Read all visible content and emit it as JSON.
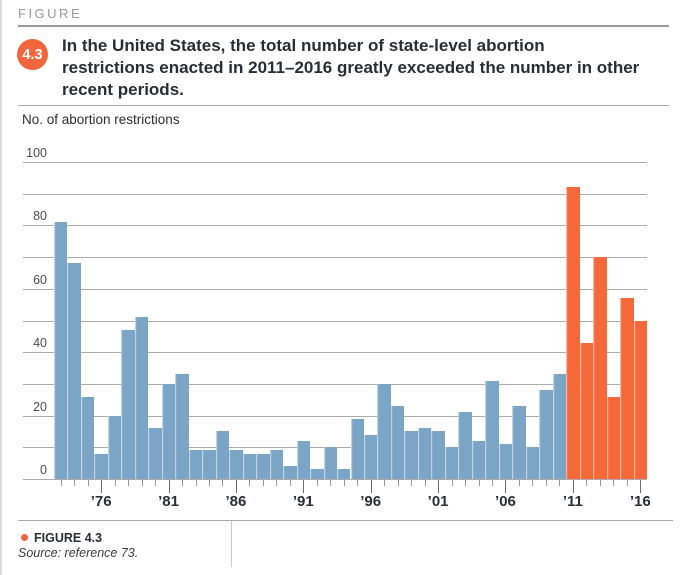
{
  "figure": {
    "kicker": "FIGURE",
    "badge": "4.3",
    "footer_label": "FIGURE 4.3",
    "source": "Source: reference 73."
  },
  "chart_data": {
    "type": "bar",
    "title": "In the United States, the total number of state-level abortion restrictions enacted in 2011–2016 greatly exceeded the number in other recent periods.",
    "ylabel": "No. of abortion restrictions",
    "xlabel": "",
    "ylim": [
      0,
      100
    ],
    "grid": true,
    "gridline_step": 10,
    "yticks": [
      0,
      20,
      40,
      60,
      80,
      100
    ],
    "categories": [
      1973,
      1974,
      1975,
      1976,
      1977,
      1978,
      1979,
      1980,
      1981,
      1982,
      1983,
      1984,
      1985,
      1986,
      1987,
      1988,
      1989,
      1990,
      1991,
      1992,
      1993,
      1994,
      1995,
      1996,
      1997,
      1998,
      1999,
      2000,
      2001,
      2002,
      2003,
      2004,
      2005,
      2006,
      2007,
      2008,
      2009,
      2010,
      2011,
      2012,
      2013,
      2014,
      2015,
      2016
    ],
    "values": [
      81,
      68,
      26,
      8,
      20,
      47,
      51,
      16,
      30,
      33,
      9,
      9,
      15,
      9,
      8,
      8,
      9,
      4,
      12,
      3,
      10,
      3,
      19,
      14,
      30,
      23,
      15,
      16,
      15,
      10,
      21,
      12,
      31,
      11,
      23,
      10,
      28,
      33,
      92,
      43,
      70,
      26,
      57,
      50
    ],
    "highlight_from_year": 2011,
    "xticks": [
      {
        "year": 1976,
        "label": "’76"
      },
      {
        "year": 1981,
        "label": "’81"
      },
      {
        "year": 1986,
        "label": "’86"
      },
      {
        "year": 1991,
        "label": "’91"
      },
      {
        "year": 1996,
        "label": "’96"
      },
      {
        "year": 2001,
        "label": "’01"
      },
      {
        "year": 2006,
        "label": "’06"
      },
      {
        "year": 2011,
        "label": "’11"
      },
      {
        "year": 2016,
        "label": "’16"
      }
    ],
    "colors": {
      "bar": "#7BA5C7",
      "highlight": "#F5683A",
      "grid": "#ABABAB",
      "axis_text": "#4D4D4D"
    }
  }
}
